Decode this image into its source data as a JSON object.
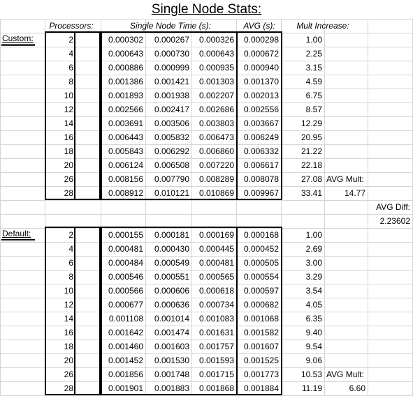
{
  "title": "Single Node Stats:",
  "headers": {
    "processors": "Processors:",
    "time": "Single Node Time (s):",
    "avg": "AVG (s):",
    "mult": "Mult Increase:"
  },
  "custom": {
    "label": "Custom:",
    "rows": [
      {
        "p": "2",
        "t1": "0.000302",
        "t2": "0.000267",
        "t3": "0.000326",
        "avg": "0.000298",
        "mult": "1.00"
      },
      {
        "p": "4",
        "t1": "0.000643",
        "t2": "0.000730",
        "t3": "0.000643",
        "avg": "0.000672",
        "mult": "2.25"
      },
      {
        "p": "6",
        "t1": "0.000886",
        "t2": "0.000999",
        "t3": "0.000935",
        "avg": "0.000940",
        "mult": "3.15"
      },
      {
        "p": "8",
        "t1": "0.001386",
        "t2": "0.001421",
        "t3": "0.001303",
        "avg": "0.001370",
        "mult": "4.59"
      },
      {
        "p": "10",
        "t1": "0.001893",
        "t2": "0.001938",
        "t3": "0.002207",
        "avg": "0.002013",
        "mult": "6.75"
      },
      {
        "p": "12",
        "t1": "0.002566",
        "t2": "0.002417",
        "t3": "0.002686",
        "avg": "0.002556",
        "mult": "8.57"
      },
      {
        "p": "14",
        "t1": "0.003691",
        "t2": "0.003506",
        "t3": "0.003803",
        "avg": "0.003667",
        "mult": "12.29"
      },
      {
        "p": "16",
        "t1": "0.006443",
        "t2": "0.005832",
        "t3": "0.006473",
        "avg": "0.006249",
        "mult": "20.95"
      },
      {
        "p": "18",
        "t1": "0.005843",
        "t2": "0.006292",
        "t3": "0.006860",
        "avg": "0.006332",
        "mult": "21.22"
      },
      {
        "p": "20",
        "t1": "0.006124",
        "t2": "0.006508",
        "t3": "0.007220",
        "avg": "0.006617",
        "mult": "22.18"
      },
      {
        "p": "26",
        "t1": "0.008156",
        "t2": "0.007790",
        "t3": "0.008289",
        "avg": "0.008078",
        "mult": "27.08"
      },
      {
        "p": "28",
        "t1": "0.008912",
        "t2": "0.010121",
        "t3": "0.010869",
        "avg": "0.009967",
        "mult": "33.41"
      }
    ],
    "avg_mult_label": "AVG Mult:",
    "avg_mult_value": "14.77"
  },
  "avg_diff": {
    "label": "AVG Diff:",
    "value": "2.23602"
  },
  "default": {
    "label": "Default:",
    "rows": [
      {
        "p": "2",
        "t1": "0.000155",
        "t2": "0.000181",
        "t3": "0.000169",
        "avg": "0.000168",
        "mult": "1.00"
      },
      {
        "p": "4",
        "t1": "0.000481",
        "t2": "0.000430",
        "t3": "0.000445",
        "avg": "0.000452",
        "mult": "2.69"
      },
      {
        "p": "6",
        "t1": "0.000484",
        "t2": "0.000549",
        "t3": "0.000481",
        "avg": "0.000505",
        "mult": "3.00"
      },
      {
        "p": "8",
        "t1": "0.000546",
        "t2": "0.000551",
        "t3": "0.000565",
        "avg": "0.000554",
        "mult": "3.29"
      },
      {
        "p": "10",
        "t1": "0.000566",
        "t2": "0.000606",
        "t3": "0.000618",
        "avg": "0.000597",
        "mult": "3.54"
      },
      {
        "p": "12",
        "t1": "0.000677",
        "t2": "0.000636",
        "t3": "0.000734",
        "avg": "0.000682",
        "mult": "4.05"
      },
      {
        "p": "14",
        "t1": "0.001108",
        "t2": "0.001014",
        "t3": "0.001083",
        "avg": "0.001068",
        "mult": "6.35"
      },
      {
        "p": "16",
        "t1": "0.001642",
        "t2": "0.001474",
        "t3": "0.001631",
        "avg": "0.001582",
        "mult": "9.40"
      },
      {
        "p": "18",
        "t1": "0.001460",
        "t2": "0.001603",
        "t3": "0.001757",
        "avg": "0.001607",
        "mult": "9.54"
      },
      {
        "p": "20",
        "t1": "0.001452",
        "t2": "0.001530",
        "t3": "0.001593",
        "avg": "0.001525",
        "mult": "9.06"
      },
      {
        "p": "26",
        "t1": "0.001856",
        "t2": "0.001748",
        "t3": "0.001715",
        "avg": "0.001773",
        "mult": "10.53"
      },
      {
        "p": "28",
        "t1": "0.001901",
        "t2": "0.001883",
        "t3": "0.001868",
        "avg": "0.001884",
        "mult": "11.19"
      }
    ],
    "avg_mult_label": "AVG Mult:",
    "avg_mult_value": "6.60"
  }
}
